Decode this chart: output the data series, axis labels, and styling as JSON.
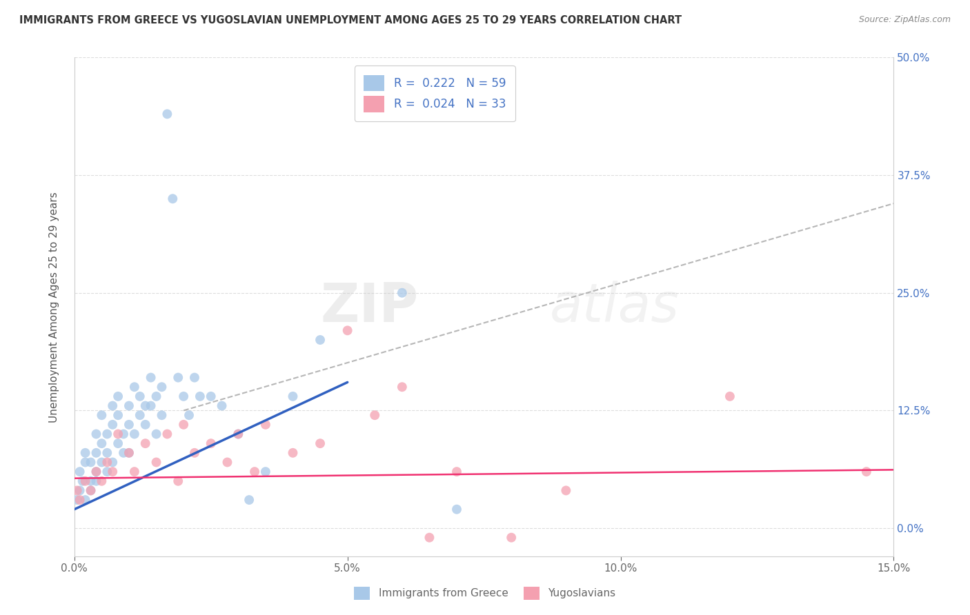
{
  "title": "IMMIGRANTS FROM GREECE VS YUGOSLAVIAN UNEMPLOYMENT AMONG AGES 25 TO 29 YEARS CORRELATION CHART",
  "source": "Source: ZipAtlas.com",
  "ylabel": "Unemployment Among Ages 25 to 29 years",
  "xlim": [
    0.0,
    0.15
  ],
  "ylim": [
    -0.03,
    0.5
  ],
  "xticks": [
    0.0,
    0.05,
    0.1,
    0.15
  ],
  "xticklabels": [
    "0.0%",
    "5.0%",
    "10.0%",
    "15.0%"
  ],
  "yticks": [
    0.0,
    0.125,
    0.25,
    0.375,
    0.5
  ],
  "yticklabels_right": [
    "0.0%",
    "12.5%",
    "25.0%",
    "37.5%",
    "50.0%"
  ],
  "legend_label1": "Immigrants from Greece",
  "legend_label2": "Yugoslavians",
  "blue_color": "#a8c8e8",
  "pink_color": "#f4a0b0",
  "trend_blue": "#3060c0",
  "trend_pink": "#f03070",
  "trend_gray": "#aaaaaa",
  "watermark": "ZIPatlas",
  "blue_scatter_x": [
    0.0005,
    0.001,
    0.001,
    0.0015,
    0.002,
    0.002,
    0.002,
    0.003,
    0.003,
    0.003,
    0.004,
    0.004,
    0.004,
    0.004,
    0.005,
    0.005,
    0.005,
    0.006,
    0.006,
    0.006,
    0.007,
    0.007,
    0.007,
    0.008,
    0.008,
    0.008,
    0.009,
    0.009,
    0.01,
    0.01,
    0.01,
    0.011,
    0.011,
    0.012,
    0.012,
    0.013,
    0.013,
    0.014,
    0.014,
    0.015,
    0.015,
    0.016,
    0.016,
    0.017,
    0.018,
    0.019,
    0.02,
    0.021,
    0.022,
    0.023,
    0.025,
    0.027,
    0.03,
    0.032,
    0.035,
    0.04,
    0.045,
    0.06,
    0.07
  ],
  "blue_scatter_y": [
    0.03,
    0.04,
    0.06,
    0.05,
    0.07,
    0.03,
    0.08,
    0.05,
    0.04,
    0.07,
    0.06,
    0.08,
    0.1,
    0.05,
    0.09,
    0.07,
    0.12,
    0.08,
    0.1,
    0.06,
    0.11,
    0.13,
    0.07,
    0.09,
    0.12,
    0.14,
    0.1,
    0.08,
    0.13,
    0.11,
    0.08,
    0.15,
    0.1,
    0.12,
    0.14,
    0.13,
    0.11,
    0.16,
    0.13,
    0.14,
    0.1,
    0.15,
    0.12,
    0.44,
    0.35,
    0.16,
    0.14,
    0.12,
    0.16,
    0.14,
    0.14,
    0.13,
    0.1,
    0.03,
    0.06,
    0.14,
    0.2,
    0.25,
    0.02
  ],
  "pink_scatter_x": [
    0.0005,
    0.001,
    0.002,
    0.003,
    0.004,
    0.005,
    0.006,
    0.007,
    0.008,
    0.01,
    0.011,
    0.013,
    0.015,
    0.017,
    0.019,
    0.02,
    0.022,
    0.025,
    0.028,
    0.03,
    0.033,
    0.035,
    0.04,
    0.045,
    0.05,
    0.055,
    0.06,
    0.065,
    0.07,
    0.08,
    0.09,
    0.12,
    0.145
  ],
  "pink_scatter_y": [
    0.04,
    0.03,
    0.05,
    0.04,
    0.06,
    0.05,
    0.07,
    0.06,
    0.1,
    0.08,
    0.06,
    0.09,
    0.07,
    0.1,
    0.05,
    0.11,
    0.08,
    0.09,
    0.07,
    0.1,
    0.06,
    0.11,
    0.08,
    0.09,
    0.21,
    0.12,
    0.15,
    -0.01,
    0.06,
    -0.01,
    0.04,
    0.14,
    0.06
  ],
  "blue_trend_x0": 0.0,
  "blue_trend_y0": 0.02,
  "blue_trend_x1": 0.05,
  "blue_trend_y1": 0.155,
  "gray_trend_x0": 0.02,
  "gray_trend_y0": 0.125,
  "gray_trend_x1": 0.15,
  "gray_trend_y1": 0.345,
  "pink_trend_x0": 0.0,
  "pink_trend_y0": 0.053,
  "pink_trend_x1": 0.15,
  "pink_trend_y1": 0.062
}
